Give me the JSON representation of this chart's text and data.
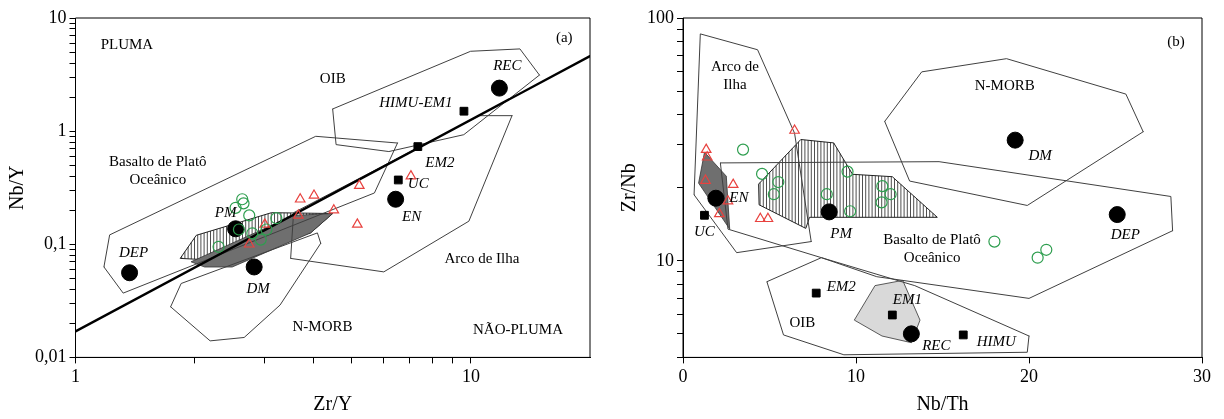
{
  "chart_data": [
    {
      "type": "scatter",
      "xlabel": "Zr/Y",
      "ylabel": "Nb/Y",
      "log": "xy",
      "grid": false,
      "legend": false,
      "xlim": [
        1,
        20
      ],
      "ylim": [
        0.01,
        10
      ],
      "xticks": [
        1,
        {
          "value": 2,
          "label": null
        },
        {
          "value": 3,
          "label": null
        },
        {
          "value": 4,
          "label": null
        },
        {
          "value": 5,
          "label": null
        },
        {
          "value": 6,
          "label": null
        },
        {
          "value": 7,
          "label": null
        },
        {
          "value": 8,
          "label": null
        },
        {
          "value": 9,
          "label": null
        },
        10
      ],
      "yticks": [
        {
          "value": 0.01,
          "label": "0,01"
        },
        {
          "value": 0.02,
          "label": null
        },
        {
          "value": 0.03,
          "label": null
        },
        {
          "value": 0.04,
          "label": null
        },
        {
          "value": 0.05,
          "label": null
        },
        {
          "value": 0.06,
          "label": null
        },
        {
          "value": 0.07,
          "label": null
        },
        {
          "value": 0.08,
          "label": null
        },
        {
          "value": 0.09,
          "label": null
        },
        {
          "value": 0.1,
          "label": "0,1"
        },
        {
          "value": 0.2,
          "label": null
        },
        {
          "value": 0.3,
          "label": null
        },
        {
          "value": 0.4,
          "label": null
        },
        {
          "value": 0.5,
          "label": null
        },
        {
          "value": 0.6,
          "label": null
        },
        {
          "value": 0.7,
          "label": null
        },
        {
          "value": 0.8,
          "label": null
        },
        {
          "value": 0.9,
          "label": null
        },
        1,
        {
          "value": 2,
          "label": null
        },
        {
          "value": 3,
          "label": null
        },
        {
          "value": 4,
          "label": null
        },
        {
          "value": 5,
          "label": null
        },
        {
          "value": 6,
          "label": null
        },
        {
          "value": 7,
          "label": null
        },
        {
          "value": 8,
          "label": null
        },
        {
          "value": 9,
          "label": null
        },
        10
      ],
      "series": [
        {
          "type": "line",
          "marker": "none",
          "color": "#000000",
          "x": [
            1,
            20
          ],
          "values": [
            0.017,
            4.6
          ]
        },
        {
          "type": "line",
          "marker": "none",
          "color": "#404040",
          "x": [
            1.18,
            1.22,
            4.05,
            6.52
          ],
          "values": [
            0.063,
            0.121,
            0.9,
            0.785
          ]
        },
        {
          "type": "line",
          "marker": "none",
          "color": "#404040",
          "x": [
            1.18,
            1.32,
            5.7,
            6.52
          ],
          "values": [
            0.063,
            0.037,
            0.284,
            0.785
          ]
        },
        {
          "type": "line",
          "marker": "none",
          "color": "#404040",
          "x": [
            4.47,
            9.98,
            13.3,
            14.9
          ],
          "values": [
            1.57,
            5.08,
            5.33,
            3.13
          ]
        },
        {
          "type": "line",
          "marker": "none",
          "color": "#404040",
          "x": [
            4.47,
            4.56,
            6.2,
            9.59,
            14.9
          ],
          "values": [
            1.57,
            0.76,
            0.66,
            0.93,
            3.13
          ]
        },
        {
          "type": "line",
          "marker": "none",
          "color": "#404040",
          "x": [
            3.5,
            6.02,
            9.88,
            12.7
          ],
          "values": [
            0.075,
            0.057,
            0.16,
            1.37
          ]
        },
        {
          "type": "line",
          "marker": "none",
          "color": "#404040",
          "x": [
            3.5,
            3.56,
            10.5,
            12.7
          ],
          "values": [
            0.075,
            0.19,
            1.37,
            1.37
          ]
        },
        {
          "type": "line",
          "marker": "none",
          "color": "#404040",
          "x": [
            1.74,
            1.85,
            4.09,
            4.17
          ],
          "values": [
            0.028,
            0.045,
            0.126,
            0.102
          ]
        },
        {
          "type": "line",
          "marker": "none",
          "color": "#404040",
          "x": [
            1.74,
            2.19,
            2.67,
            3.29,
            4.17
          ],
          "values": [
            0.028,
            0.014,
            0.015,
            0.029,
            0.102
          ]
        },
        {
          "type": "scatter",
          "marker": "circle",
          "color": "#2e9e4f",
          "x": [
            2.64,
            2.66,
            2.54,
            3.22,
            3.04,
            2.8,
            2.3,
            2.59,
            2.94,
            2.75
          ],
          "values": [
            0.25,
            0.23,
            0.21,
            0.17,
            0.135,
            0.125,
            0.095,
            0.135,
            0.11,
            0.18
          ]
        },
        {
          "type": "scatter",
          "marker": "triangle",
          "color": "#e8423f",
          "x": [
            3.7,
            4.01,
            5.22,
            4.5,
            3.66,
            7.05,
            5.16,
            3.01,
            2.75
          ],
          "values": [
            0.25,
            0.27,
            0.33,
            0.2,
            0.18,
            0.4,
            0.15,
            0.15,
            0.1
          ]
        },
        {
          "type": "scatter",
          "marker": "circle",
          "color": "#000000",
          "x": [
            1.37,
            2.54,
            2.83,
            6.45,
            11.8
          ],
          "values": [
            0.056,
            0.137,
            0.063,
            0.25,
            2.4
          ]
        },
        {
          "type": "scatter",
          "marker": "square",
          "color": "#000000",
          "x": [
            9.6,
            7.34,
            6.55
          ],
          "values": [
            1.5,
            0.73,
            0.37
          ]
        }
      ],
      "annotations": [
        "PLUMA",
        "NÃO-PLUMA",
        "(a)",
        "OIB",
        "Basalto de Platô\nOceânico",
        "Arco de Ilha",
        "N-MORB",
        {
          "text": "DEP",
          "x": 1.37,
          "y": 0.056
        },
        {
          "text": "PM",
          "x": 2.54,
          "y": 0.137
        },
        {
          "text": "DM",
          "x": 2.83,
          "y": 0.063
        },
        {
          "text": "EN",
          "x": 6.45,
          "y": 0.25
        },
        {
          "text": "REC",
          "x": 11.8,
          "y": 2.4
        },
        {
          "text": "HIMU-EM1",
          "x": 9.6,
          "y": 1.5
        },
        {
          "text": "EM2",
          "x": 7.34,
          "y": 0.73
        },
        {
          "text": "UC",
          "x": 6.55,
          "y": 0.37
        }
      ]
    },
    {
      "type": "scatter",
      "xlabel": "Nb/Th",
      "ylabel": "Zr/Nb",
      "log": "y",
      "grid": false,
      "legend": false,
      "xlim": [
        0,
        30
      ],
      "ylim": [
        4,
        100
      ],
      "xticks": [
        0,
        10,
        20,
        30
      ],
      "yticks": [
        {
          "value": 4,
          "label": null
        },
        {
          "value": 5,
          "label": null
        },
        {
          "value": 6,
          "label": null
        },
        {
          "value": 7,
          "label": null
        },
        {
          "value": 8,
          "label": null
        },
        {
          "value": 9,
          "label": null
        },
        10,
        {
          "value": 20,
          "label": null
        },
        {
          "value": 30,
          "label": null
        },
        {
          "value": 40,
          "label": null
        },
        {
          "value": 50,
          "label": null
        },
        {
          "value": 60,
          "label": null
        },
        {
          "value": 70,
          "label": null
        },
        {
          "value": 80,
          "label": null
        },
        {
          "value": 90,
          "label": null
        },
        100
      ],
      "series": [
        {
          "type": "line",
          "marker": "none",
          "color": "#404040",
          "x": [
            0.64,
            1.0,
            4.31,
            6.45,
            7.41
          ],
          "values": [
            18.7,
            86,
            74,
            33.5,
            12
          ]
        },
        {
          "type": "line",
          "marker": "none",
          "color": "#404040",
          "x": [
            0.64,
            3.1,
            7.41
          ],
          "values": [
            18.7,
            10.8,
            12
          ]
        },
        {
          "type": "line",
          "marker": "none",
          "color": "#404040",
          "x": [
            11.66,
            13.8,
            18.7,
            25.6,
            26.6
          ],
          "values": [
            37.5,
            60,
            68,
            48.6,
            34
          ]
        },
        {
          "type": "line",
          "marker": "none",
          "color": "#404040",
          "x": [
            11.66,
            13.1,
            19.9,
            26.6
          ],
          "values": [
            37.5,
            21.3,
            16.9,
            34
          ]
        },
        {
          "type": "line",
          "marker": "none",
          "color": "#404040",
          "x": [
            2.16,
            14.8,
            28.2,
            28.3
          ],
          "values": [
            25.3,
            25.6,
            18.4,
            13.3
          ]
        },
        {
          "type": "line",
          "marker": "none",
          "color": "#404040",
          "x": [
            2.16,
            2.6,
            8.0,
            11.2,
            20.0,
            28.3
          ],
          "values": [
            25.3,
            13.5,
            10.3,
            8.6,
            7.0,
            13.3
          ]
        },
        {
          "type": "line",
          "marker": "none",
          "color": "#404040",
          "x": [
            4.85,
            8.0,
            13.4,
            20.0
          ],
          "values": [
            8.2,
            10.3,
            7.9,
            4.9
          ]
        },
        {
          "type": "line",
          "marker": "none",
          "color": "#404040",
          "x": [
            4.85,
            5.81,
            9.3,
            19.9,
            20.0
          ],
          "values": [
            8.2,
            4.95,
            4.1,
            4.2,
            4.9
          ]
        },
        {
          "type": "scatter",
          "marker": "circle",
          "color": "#2e9e4f",
          "x": [
            3.47,
            4.57,
            5.51,
            5.25,
            8.31,
            9.51,
            9.66,
            11.52,
            12.0,
            11.48,
            18.0,
            21.0,
            20.5
          ],
          "values": [
            28.7,
            22.8,
            21.1,
            18.8,
            18.8,
            23.3,
            16.0,
            20.3,
            18.8,
            17.4,
            12.0,
            11.1,
            10.3
          ]
        },
        {
          "type": "scatter",
          "marker": "triangle",
          "color": "#e8423f",
          "x": [
            6.45,
            1.34,
            1.3,
            2.9,
            2.6,
            4.47,
            4.91,
            2.1,
            1.4
          ],
          "values": [
            34.4,
            28.7,
            21.4,
            20.6,
            17.6,
            14.9,
            14.9,
            15.6,
            26.7
          ]
        },
        {
          "type": "scatter",
          "marker": "circle",
          "color": "#000000",
          "x": [
            19.2,
            25.1,
            8.45,
            1.9,
            13.2
          ],
          "values": [
            31.4,
            15.5,
            15.9,
            18.1,
            5.0
          ]
        },
        {
          "type": "scatter",
          "marker": "square",
          "color": "#000000",
          "x": [
            1.24,
            7.7,
            12.1,
            16.2
          ],
          "values": [
            15.4,
            7.36,
            5.98,
            4.95
          ]
        }
      ],
      "annotations": [
        "(b)",
        "Arco de\nIlha",
        "N-MORB",
        "Basalto de Platô\nOceânico",
        "OIB",
        {
          "text": "DM",
          "x": 19.2,
          "y": 31.4
        },
        {
          "text": "DEP",
          "x": 25.1,
          "y": 15.5
        },
        {
          "text": "PM",
          "x": 8.45,
          "y": 15.9
        },
        {
          "text": "EN",
          "x": 1.9,
          "y": 18.1
        },
        {
          "text": "UC",
          "x": 1.24,
          "y": 15.4
        },
        {
          "text": "EM2",
          "x": 7.7,
          "y": 7.36
        },
        {
          "text": "EM1",
          "x": 12.1,
          "y": 5.98
        },
        {
          "text": "REC",
          "x": 13.2,
          "y": 5.0
        },
        {
          "text": "HIMU",
          "x": 16.2,
          "y": 4.95
        }
      ]
    }
  ]
}
